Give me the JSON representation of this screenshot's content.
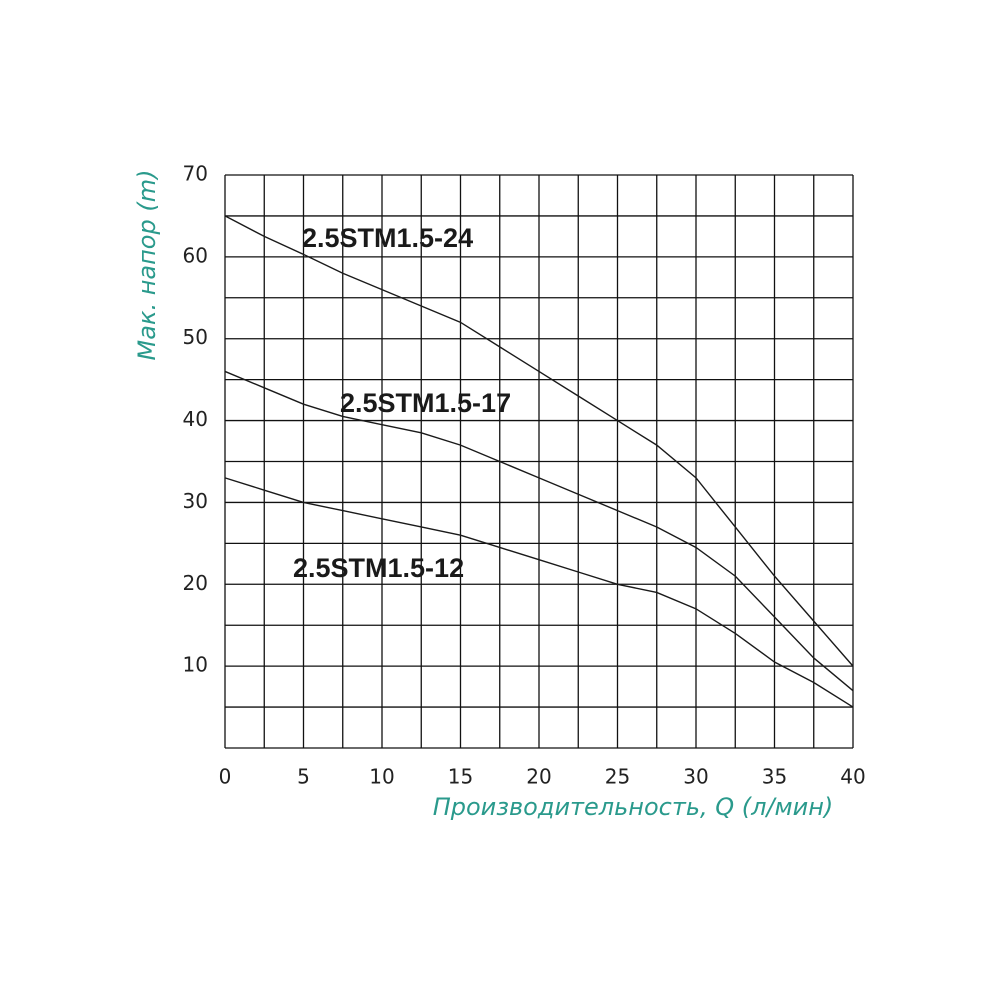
{
  "chart_data": {
    "type": "line",
    "x_label": "Производительность, Q (л/мин)",
    "y_label": "Мак. напор (m)",
    "x": [
      0,
      2.5,
      5,
      7.5,
      10,
      12.5,
      15,
      17.5,
      20,
      22.5,
      25,
      27.5,
      30,
      32.5,
      35,
      37.5,
      40
    ],
    "series": [
      {
        "name": "2.5STM1.5-24",
        "color": "#1a1a1a",
        "values": [
          65,
          62.5,
          60.3,
          58,
          56,
          54,
          52,
          49,
          46,
          43,
          40,
          37,
          33,
          27,
          21,
          15.5,
          10
        ]
      },
      {
        "name": "2.5STM1.5-17",
        "color": "#1a1a1a",
        "values": [
          46,
          44,
          42,
          40.5,
          39.5,
          38.5,
          37,
          35,
          33,
          31,
          29,
          27,
          24.5,
          21,
          16,
          11,
          7
        ]
      },
      {
        "name": "2.5STM1.5-12",
        "color": "#1a1a1a",
        "values": [
          33,
          31.5,
          30,
          29,
          28,
          27,
          26,
          24.5,
          23,
          21.5,
          20,
          19,
          17,
          14,
          10.5,
          8,
          5
        ]
      }
    ],
    "xlim": [
      0,
      40
    ],
    "ylim": [
      0,
      70
    ],
    "xticks": [
      0,
      5,
      10,
      15,
      20,
      25,
      30,
      35,
      40
    ],
    "yticks": [
      10,
      20,
      30,
      40,
      50,
      60,
      70
    ],
    "xgrid": [
      0,
      2.5,
      5,
      7.5,
      10,
      12.5,
      15,
      17.5,
      20,
      22.5,
      25,
      27.5,
      30,
      32.5,
      35,
      37.5,
      40
    ],
    "ygrid": [
      0,
      5,
      10,
      15,
      20,
      25,
      30,
      35,
      40,
      45,
      50,
      55,
      60,
      65,
      70
    ],
    "grid": true
  }
}
